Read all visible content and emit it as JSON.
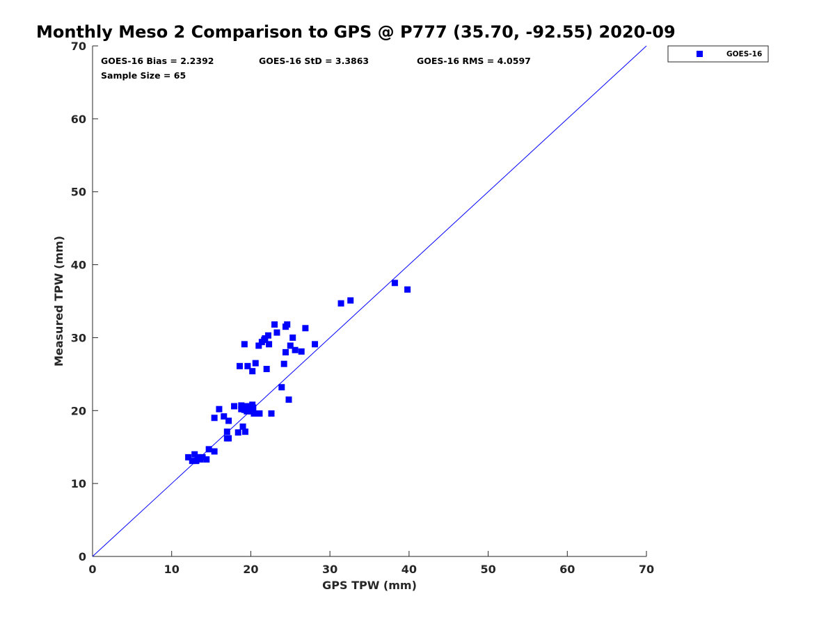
{
  "chart_data": {
    "type": "scatter",
    "title": "Monthly Meso 2 Comparison to GPS @ P777 (35.70, -92.55) 2020-09",
    "xlabel": "GPS TPW (mm)",
    "ylabel": "Measured TPW (mm)",
    "xlim": [
      0,
      70
    ],
    "ylim": [
      0,
      70
    ],
    "xticks": [
      "0",
      "10",
      "20",
      "30",
      "40",
      "50",
      "60",
      "70"
    ],
    "yticks": [
      "0",
      "10",
      "20",
      "30",
      "40",
      "50",
      "60",
      "70"
    ],
    "grid": false,
    "legend_position": "outside-top-right",
    "reference_line": {
      "type": "one-to-one",
      "color": "#0000ff"
    },
    "stats": {
      "bias": "GOES-16 Bias = 2.2392",
      "std": "GOES-16 StD = 3.3863",
      "rms": "GOES-16 RMS = 4.0597",
      "sample_size": "Sample Size = 65"
    },
    "series": [
      {
        "name": "GOES-16",
        "color": "#0000ff",
        "marker": "square",
        "points": [
          [
            12.1,
            13.6
          ],
          [
            12.6,
            13.1
          ],
          [
            12.9,
            14.0
          ],
          [
            13.1,
            13.1
          ],
          [
            13.3,
            13.6
          ],
          [
            13.6,
            13.3
          ],
          [
            13.9,
            13.6
          ],
          [
            14.4,
            13.3
          ],
          [
            14.7,
            14.7
          ],
          [
            15.4,
            14.4
          ],
          [
            15.4,
            19.0
          ],
          [
            16.0,
            20.2
          ],
          [
            16.6,
            19.2
          ],
          [
            17.0,
            17.1
          ],
          [
            17.0,
            16.2
          ],
          [
            17.2,
            16.2
          ],
          [
            17.2,
            18.6
          ],
          [
            17.9,
            20.6
          ],
          [
            18.4,
            17.0
          ],
          [
            18.6,
            26.1
          ],
          [
            18.8,
            20.7
          ],
          [
            18.8,
            20.2
          ],
          [
            19.0,
            17.8
          ],
          [
            19.2,
            29.1
          ],
          [
            19.2,
            20.1
          ],
          [
            19.3,
            17.1
          ],
          [
            19.4,
            20.6
          ],
          [
            19.5,
            19.9
          ],
          [
            19.6,
            26.1
          ],
          [
            19.7,
            20.4
          ],
          [
            19.9,
            20.0
          ],
          [
            20.0,
            20.6
          ],
          [
            20.1,
            19.9
          ],
          [
            20.2,
            25.4
          ],
          [
            20.2,
            20.8
          ],
          [
            20.3,
            20.4
          ],
          [
            20.4,
            19.6
          ],
          [
            20.6,
            26.5
          ],
          [
            21.0,
            28.9
          ],
          [
            21.1,
            19.6
          ],
          [
            21.4,
            29.4
          ],
          [
            21.7,
            29.7
          ],
          [
            21.8,
            29.9
          ],
          [
            22.0,
            25.7
          ],
          [
            22.2,
            30.3
          ],
          [
            22.3,
            29.1
          ],
          [
            22.6,
            19.6
          ],
          [
            23.0,
            31.8
          ],
          [
            23.3,
            30.7
          ],
          [
            23.9,
            23.2
          ],
          [
            24.2,
            26.4
          ],
          [
            24.4,
            28.0
          ],
          [
            24.4,
            31.5
          ],
          [
            24.6,
            31.8
          ],
          [
            24.8,
            21.5
          ],
          [
            25.0,
            28.9
          ],
          [
            25.3,
            30.0
          ],
          [
            25.6,
            28.3
          ],
          [
            26.4,
            28.1
          ],
          [
            26.9,
            31.3
          ],
          [
            28.1,
            29.1
          ],
          [
            31.4,
            34.7
          ],
          [
            32.6,
            35.1
          ],
          [
            38.2,
            37.5
          ],
          [
            39.8,
            36.6
          ]
        ]
      }
    ]
  }
}
